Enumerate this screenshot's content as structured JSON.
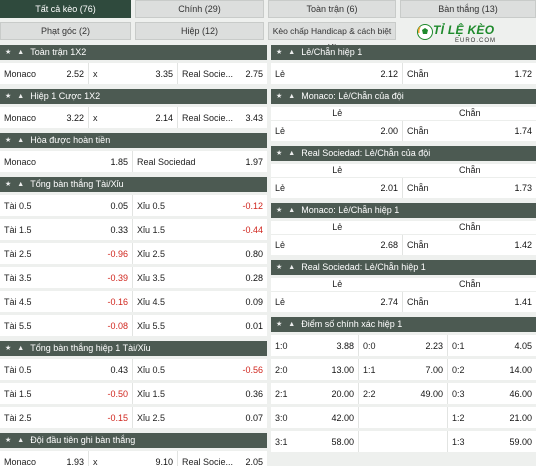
{
  "tabs": [
    {
      "label": "Tất cả kèo (76)",
      "active": true
    },
    {
      "label": "Chính (29)",
      "active": false
    },
    {
      "label": "Toàn trận (6)",
      "active": false
    },
    {
      "label": "Bàn thắng (13)",
      "active": false
    },
    {
      "label": "Phạt góc (2)",
      "active": false
    },
    {
      "label": "Hiệp (12)",
      "active": false
    },
    {
      "label": "Kèo chấp Handicap & cách biệt (4)",
      "active": false
    }
  ],
  "logo": {
    "line1": "TỈ LỆ KÈO",
    "line2": "EURO.COM"
  },
  "left": {
    "full_1x2": {
      "title": "Toàn trận 1X2",
      "cells": [
        {
          "label": "Monaco",
          "odd": "2.52"
        },
        {
          "label": "x",
          "odd": "3.35"
        },
        {
          "label": "Real Socie...",
          "odd": "2.75"
        }
      ]
    },
    "half_1x2": {
      "title": "Hiệp 1 Cược 1X2",
      "cells": [
        {
          "label": "Monaco",
          "odd": "3.22"
        },
        {
          "label": "x",
          "odd": "2.14"
        },
        {
          "label": "Real Socie...",
          "odd": "3.43"
        }
      ]
    },
    "dnb": {
      "title": "Hòa được hoàn tiền",
      "cells": [
        {
          "label": "Monaco",
          "odd": "1.85"
        },
        {
          "label": "Real Sociedad",
          "odd": "1.97"
        }
      ]
    },
    "total": {
      "title": "Tổng bàn thắng Tài/Xỉu",
      "rows": [
        [
          {
            "label": "Tài 0.5",
            "odd": "0.05"
          },
          {
            "label": "Xỉu 0.5",
            "odd": "-0.12"
          }
        ],
        [
          {
            "label": "Tài 1.5",
            "odd": "0.33"
          },
          {
            "label": "Xỉu 1.5",
            "odd": "-0.44"
          }
        ],
        [
          {
            "label": "Tài 2.5",
            "odd": "-0.96"
          },
          {
            "label": "Xỉu 2.5",
            "odd": "0.80"
          }
        ],
        [
          {
            "label": "Tài 3.5",
            "odd": "-0.39"
          },
          {
            "label": "Xỉu 3.5",
            "odd": "0.28"
          }
        ],
        [
          {
            "label": "Tài 4.5",
            "odd": "-0.16"
          },
          {
            "label": "Xỉu 4.5",
            "odd": "0.09"
          }
        ],
        [
          {
            "label": "Tài 5.5",
            "odd": "-0.08"
          },
          {
            "label": "Xỉu 5.5",
            "odd": "0.01"
          }
        ]
      ]
    },
    "total_h1": {
      "title": "Tổng bàn thắng hiệp 1 Tài/Xỉu",
      "rows": [
        [
          {
            "label": "Tài 0.5",
            "odd": "0.43"
          },
          {
            "label": "Xỉu 0.5",
            "odd": "-0.56"
          }
        ],
        [
          {
            "label": "Tài 1.5",
            "odd": "-0.50"
          },
          {
            "label": "Xỉu 1.5",
            "odd": "0.36"
          }
        ],
        [
          {
            "label": "Tài 2.5",
            "odd": "-0.15"
          },
          {
            "label": "Xỉu 2.5",
            "odd": "0.07"
          }
        ]
      ]
    },
    "first_score": {
      "title": "Đội đầu tiên ghi bàn thắng",
      "cells": [
        {
          "label": "Monaco",
          "odd": "1.93"
        },
        {
          "label": "x",
          "odd": "9.10"
        },
        {
          "label": "Real Socie...",
          "odd": "2.05"
        }
      ]
    }
  },
  "right": {
    "oe_h1": {
      "title": "Lẻ/Chẵn hiệp 1",
      "cells": [
        {
          "label": "Lẻ",
          "odd": "2.12"
        },
        {
          "label": "Chẵn",
          "odd": "1.72"
        }
      ]
    },
    "monaco_oe": {
      "title": "Monaco: Lẻ/Chẵn của đội",
      "heads": [
        "Lẻ",
        "Chẵn"
      ],
      "cells": [
        {
          "label": "Lẻ",
          "odd": "2.00"
        },
        {
          "label": "Chẵn",
          "odd": "1.74"
        }
      ]
    },
    "real_oe": {
      "title": "Real Sociedad: Lẻ/Chẵn của đội",
      "heads": [
        "Lẻ",
        "Chẵn"
      ],
      "cells": [
        {
          "label": "Lẻ",
          "odd": "2.01"
        },
        {
          "label": "Chẵn",
          "odd": "1.73"
        }
      ]
    },
    "monaco_oe_h1": {
      "title": "Monaco: Lẻ/Chẵn hiệp 1",
      "heads": [
        "Lẻ",
        "Chẵn"
      ],
      "cells": [
        {
          "label": "Lẻ",
          "odd": "2.68"
        },
        {
          "label": "Chẵn",
          "odd": "1.42"
        }
      ]
    },
    "real_oe_h1": {
      "title": "Real Sociedad: Lẻ/Chẵn hiệp 1",
      "heads": [
        "Lẻ",
        "Chẵn"
      ],
      "cells": [
        {
          "label": "Lẻ",
          "odd": "2.74"
        },
        {
          "label": "Chẵn",
          "odd": "1.41"
        }
      ]
    },
    "correct_score_h1": {
      "title": "Điểm số chính xác hiệp 1",
      "rows": [
        [
          {
            "label": "1:0",
            "odd": "3.88"
          },
          {
            "label": "0:0",
            "odd": "2.23"
          },
          {
            "label": "0:1",
            "odd": "4.05"
          }
        ],
        [
          {
            "label": "2:0",
            "odd": "13.00"
          },
          {
            "label": "1:1",
            "odd": "7.00"
          },
          {
            "label": "0:2",
            "odd": "14.00"
          }
        ],
        [
          {
            "label": "2:1",
            "odd": "20.00"
          },
          {
            "label": "2:2",
            "odd": "49.00"
          },
          {
            "label": "0:3",
            "odd": "46.00"
          }
        ],
        [
          {
            "label": "3:0",
            "odd": "42.00"
          },
          {
            "label": "",
            "odd": ""
          },
          {
            "label": "1:2",
            "odd": "21.00"
          }
        ],
        [
          {
            "label": "3:1",
            "odd": "58.00"
          },
          {
            "label": "",
            "odd": ""
          },
          {
            "label": "1:3",
            "odd": "59.00"
          }
        ]
      ]
    }
  },
  "colors": {
    "header_bg": "#4c5a52",
    "active_tab": "#2f4a3d",
    "negative": "#d0261e",
    "logo_green": "#1e8a2c"
  }
}
